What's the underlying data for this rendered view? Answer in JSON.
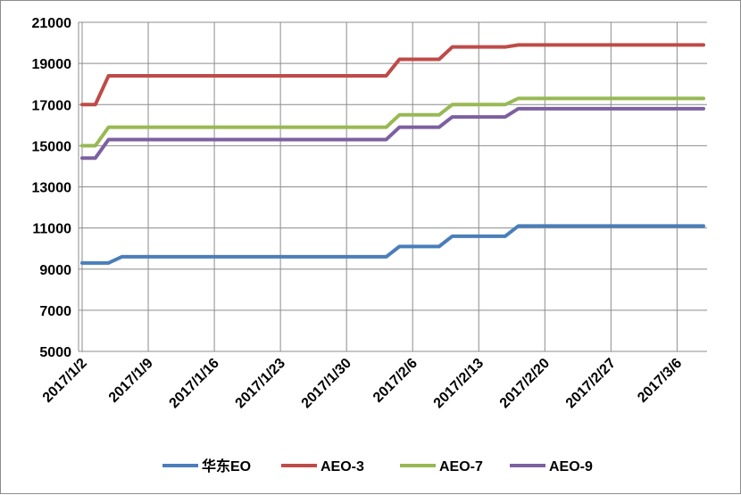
{
  "chart_data": {
    "type": "line",
    "title": "",
    "xlabel": "",
    "ylabel": "",
    "x": [
      "2017/1/2",
      "2017/1/3",
      "2017/1/4",
      "2017/1/5",
      "2017/1/6",
      "2017/1/9",
      "2017/1/10",
      "2017/1/11",
      "2017/1/12",
      "2017/1/13",
      "2017/1/16",
      "2017/1/17",
      "2017/1/18",
      "2017/1/19",
      "2017/1/20",
      "2017/1/23",
      "2017/1/24",
      "2017/1/25",
      "2017/1/26",
      "2017/1/27",
      "2017/1/30",
      "2017/1/31",
      "2017/2/1",
      "2017/2/2",
      "2017/2/3",
      "2017/2/6",
      "2017/2/7",
      "2017/2/8",
      "2017/2/9",
      "2017/2/10",
      "2017/2/13",
      "2017/2/14",
      "2017/2/15",
      "2017/2/16",
      "2017/2/17",
      "2017/2/20",
      "2017/2/21",
      "2017/2/22",
      "2017/2/23",
      "2017/2/24",
      "2017/2/27",
      "2017/2/28",
      "2017/3/1",
      "2017/3/2",
      "2017/3/3",
      "2017/3/6",
      "2017/3/7",
      "2017/3/8"
    ],
    "x_tick_labels": [
      "2017/1/2",
      "2017/1/9",
      "2017/1/16",
      "2017/1/23",
      "2017/1/30",
      "2017/2/6",
      "2017/2/13",
      "2017/2/20",
      "2017/2/27",
      "2017/3/6"
    ],
    "y_ticks": [
      "5000",
      "7000",
      "9000",
      "11000",
      "13000",
      "15000",
      "17000",
      "19000",
      "21000"
    ],
    "ylim": [
      5000,
      21000
    ],
    "grid": true,
    "legend_position": "bottom",
    "series": [
      {
        "name": "华东EO",
        "color": "#4a7ebb",
        "values": [
          9300,
          9300,
          9300,
          9600,
          9600,
          9600,
          9600,
          9600,
          9600,
          9600,
          9600,
          9600,
          9600,
          9600,
          9600,
          9600,
          9600,
          9600,
          9600,
          9600,
          9600,
          9600,
          9600,
          9600,
          10100,
          10100,
          10100,
          10100,
          10600,
          10600,
          10600,
          10600,
          10600,
          11100,
          11100,
          11100,
          11100,
          11100,
          11100,
          11100,
          11100,
          11100,
          11100,
          11100,
          11100,
          11100,
          11100,
          11100
        ]
      },
      {
        "name": "AEO-3",
        "color": "#be4b48",
        "values": [
          17000,
          17000,
          18400,
          18400,
          18400,
          18400,
          18400,
          18400,
          18400,
          18400,
          18400,
          18400,
          18400,
          18400,
          18400,
          18400,
          18400,
          18400,
          18400,
          18400,
          18400,
          18400,
          18400,
          18400,
          19200,
          19200,
          19200,
          19200,
          19800,
          19800,
          19800,
          19800,
          19800,
          19900,
          19900,
          19900,
          19900,
          19900,
          19900,
          19900,
          19900,
          19900,
          19900,
          19900,
          19900,
          19900,
          19900,
          19900
        ]
      },
      {
        "name": "AEO-7",
        "color": "#98b954",
        "values": [
          15000,
          15000,
          15900,
          15900,
          15900,
          15900,
          15900,
          15900,
          15900,
          15900,
          15900,
          15900,
          15900,
          15900,
          15900,
          15900,
          15900,
          15900,
          15900,
          15900,
          15900,
          15900,
          15900,
          15900,
          16500,
          16500,
          16500,
          16500,
          17000,
          17000,
          17000,
          17000,
          17000,
          17300,
          17300,
          17300,
          17300,
          17300,
          17300,
          17300,
          17300,
          17300,
          17300,
          17300,
          17300,
          17300,
          17300,
          17300
        ]
      },
      {
        "name": "AEO-9",
        "color": "#7d60a0",
        "values": [
          14400,
          14400,
          15300,
          15300,
          15300,
          15300,
          15300,
          15300,
          15300,
          15300,
          15300,
          15300,
          15300,
          15300,
          15300,
          15300,
          15300,
          15300,
          15300,
          15300,
          15300,
          15300,
          15300,
          15300,
          15900,
          15900,
          15900,
          15900,
          16400,
          16400,
          16400,
          16400,
          16400,
          16800,
          16800,
          16800,
          16800,
          16800,
          16800,
          16800,
          16800,
          16800,
          16800,
          16800,
          16800,
          16800,
          16800,
          16800
        ]
      }
    ]
  }
}
